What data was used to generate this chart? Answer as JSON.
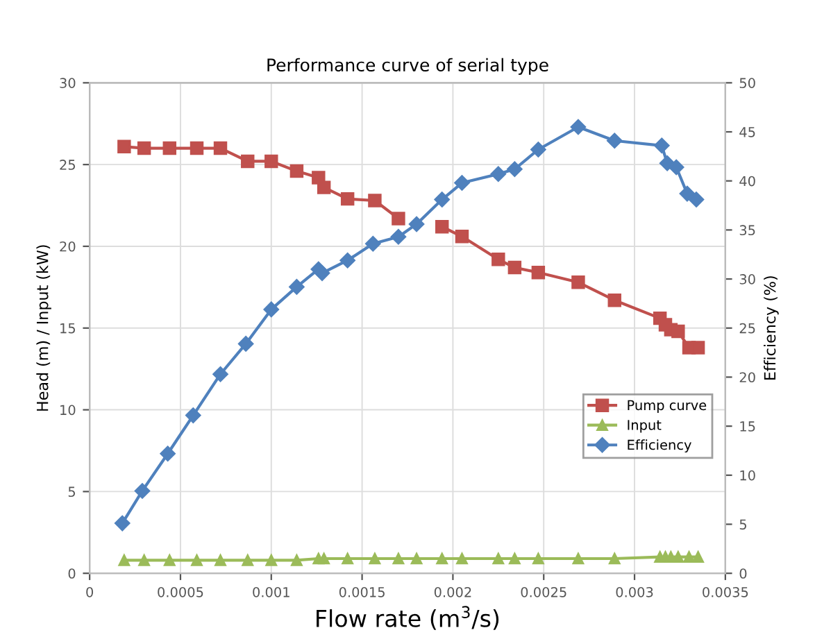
{
  "chart_data": {
    "type": "line",
    "title": "Performance curve of serial type",
    "xlabel": "Flow rate (m$^{3}$/s)",
    "ylabel": "Head (m) / Input (kW)",
    "y2label": "Efficiency (%)",
    "xlim": [
      0,
      0.0035
    ],
    "xticks": [
      0,
      0.0005,
      0.001,
      0.0015,
      0.002,
      0.0025,
      0.003,
      0.0035
    ],
    "ylim": [
      0,
      30
    ],
    "yticks": [
      0,
      5,
      10,
      15,
      20,
      25,
      30
    ],
    "y2lim": [
      0,
      50
    ],
    "y2ticks": [
      0,
      5,
      10,
      15,
      20,
      25,
      30,
      35,
      40,
      45,
      50
    ],
    "grid": true,
    "legend": "right",
    "series": [
      {
        "name": "Pump curve",
        "color": "#c0504d",
        "marker": "square",
        "x": [
          0.00019,
          0.0003,
          0.00044,
          0.00059,
          0.00072,
          0.00087,
          0.001,
          0.00114,
          0.00126,
          0.00129,
          0.00142,
          0.00157,
          0.0017,
          0.0018,
          0.00194,
          0.00205,
          0.00225,
          0.00234,
          0.00247,
          0.00269,
          0.00289,
          0.00314,
          0.00317,
          0.0032,
          0.00324,
          0.0033,
          0.00335
        ],
        "values": [
          26.1,
          26.0,
          26.0,
          26.0,
          26.0,
          25.2,
          25.2,
          24.6,
          24.2,
          23.6,
          22.9,
          22.8,
          21.7,
          null,
          21.2,
          20.6,
          19.2,
          18.7,
          18.4,
          17.8,
          16.7,
          15.6,
          15.2,
          14.9,
          14.8,
          13.8,
          13.8
        ]
      },
      {
        "name": "Input",
        "color": "#9bbb59",
        "marker": "triangle",
        "x": [
          0.00019,
          0.0003,
          0.00044,
          0.00059,
          0.00072,
          0.00087,
          0.001,
          0.00114,
          0.00126,
          0.00129,
          0.00142,
          0.00157,
          0.0017,
          0.0018,
          0.00194,
          0.00205,
          0.00225,
          0.00234,
          0.00247,
          0.00269,
          0.00289,
          0.00314,
          0.00317,
          0.0032,
          0.00324,
          0.0033,
          0.00335
        ],
        "values": [
          0.8,
          0.8,
          0.8,
          0.8,
          0.8,
          0.8,
          0.8,
          0.8,
          0.9,
          0.9,
          0.9,
          0.9,
          0.9,
          0.9,
          0.9,
          0.9,
          0.9,
          0.9,
          0.9,
          0.9,
          0.9,
          1.0,
          1.0,
          1.0,
          1.0,
          1.0,
          1.0
        ]
      },
      {
        "name": "Efficiency",
        "color": "#4f81bd",
        "marker": "diamond",
        "axis": "y2",
        "x": [
          0.00018,
          0.00029,
          0.00043,
          0.00057,
          0.00072,
          0.00086,
          0.001,
          0.00114,
          0.00126,
          0.00128,
          0.00142,
          0.00156,
          0.0017,
          0.0018,
          0.00194,
          0.00205,
          0.00225,
          0.00234,
          0.00247,
          0.00269,
          0.00289,
          0.00315,
          0.00318,
          0.00323,
          0.00329,
          0.00334
        ],
        "values": [
          5.1,
          8.4,
          12.2,
          16.1,
          20.3,
          23.4,
          26.9,
          29.2,
          31.0,
          30.6,
          31.9,
          33.6,
          34.3,
          35.6,
          38.1,
          39.8,
          40.7,
          41.2,
          43.2,
          45.5,
          44.1,
          43.6,
          41.8,
          41.4,
          38.7,
          38.1
        ]
      }
    ]
  }
}
